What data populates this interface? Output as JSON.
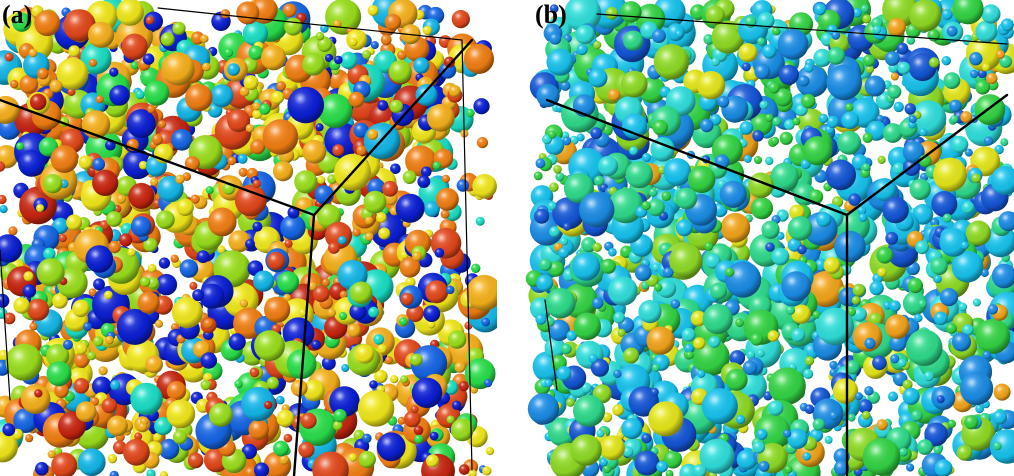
{
  "figure": {
    "panels": [
      {
        "id": "a",
        "label": "(a)",
        "palette": [
          "#0a1fd6",
          "#1566e6",
          "#13b8ea",
          "#19e0c6",
          "#29e04a",
          "#9be01c",
          "#f2e91a",
          "#f7b21b",
          "#f27f12",
          "#e3481a",
          "#c8250f"
        ],
        "palette_weights": [
          0.12,
          0.06,
          0.04,
          0.03,
          0.07,
          0.12,
          0.15,
          0.14,
          0.14,
          0.08,
          0.05
        ]
      },
      {
        "id": "b",
        "label": "(b)",
        "palette": [
          "#1456d8",
          "#1a8de6",
          "#17c4ef",
          "#2fe0dc",
          "#2edc8c",
          "#33d544",
          "#8fdc24",
          "#e6e81a",
          "#f4a51a"
        ],
        "palette_weights": [
          0.08,
          0.13,
          0.2,
          0.14,
          0.14,
          0.14,
          0.09,
          0.05,
          0.03
        ]
      }
    ]
  }
}
